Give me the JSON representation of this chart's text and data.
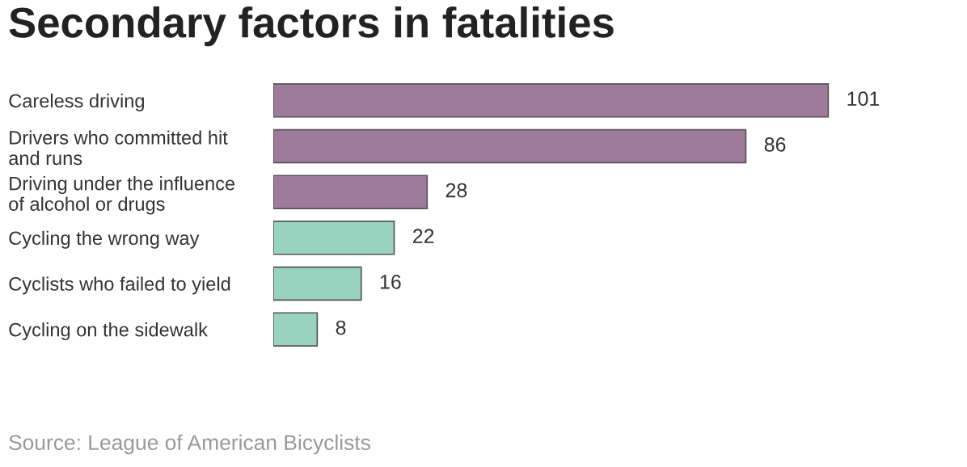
{
  "chart_data": {
    "type": "bar",
    "orientation": "horizontal",
    "title": "Secondary factors in fatalities",
    "categories": [
      "Careless driving",
      "Drivers who committed hit\nand runs",
      "Driving under the influence\nof alcohol or drugs",
      "Cycling the wrong way",
      "Cyclists who failed to yield",
      "Cycling on the sidewalk"
    ],
    "values": [
      101,
      86,
      28,
      22,
      16,
      8
    ],
    "colors": [
      "#9e7b9b",
      "#9e7b9b",
      "#9e7b9b",
      "#99d3bf",
      "#99d3bf",
      "#99d3bf"
    ],
    "data_labels": true,
    "grid": false,
    "legend": false,
    "annotations": [
      "Source: League of American Bicyclists"
    ]
  }
}
